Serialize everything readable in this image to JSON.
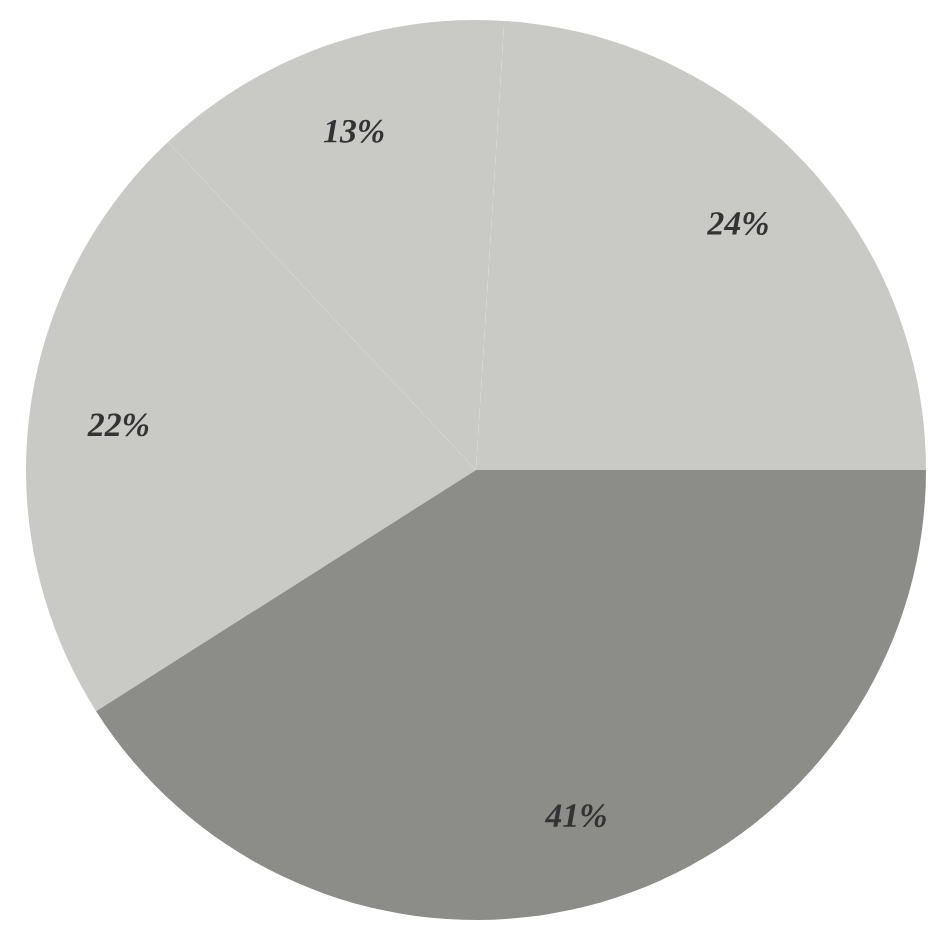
{
  "chart_data": {
    "type": "pie",
    "categories": [
      null,
      null,
      null,
      null
    ],
    "values": [
      24,
      13,
      22,
      41
    ],
    "value_labels": [
      "24%",
      "13%",
      "22%",
      "41%"
    ],
    "colors": [
      "#c9c9c5",
      "#c9c9c5",
      "#c9c9c5",
      "#8c8c88"
    ]
  }
}
